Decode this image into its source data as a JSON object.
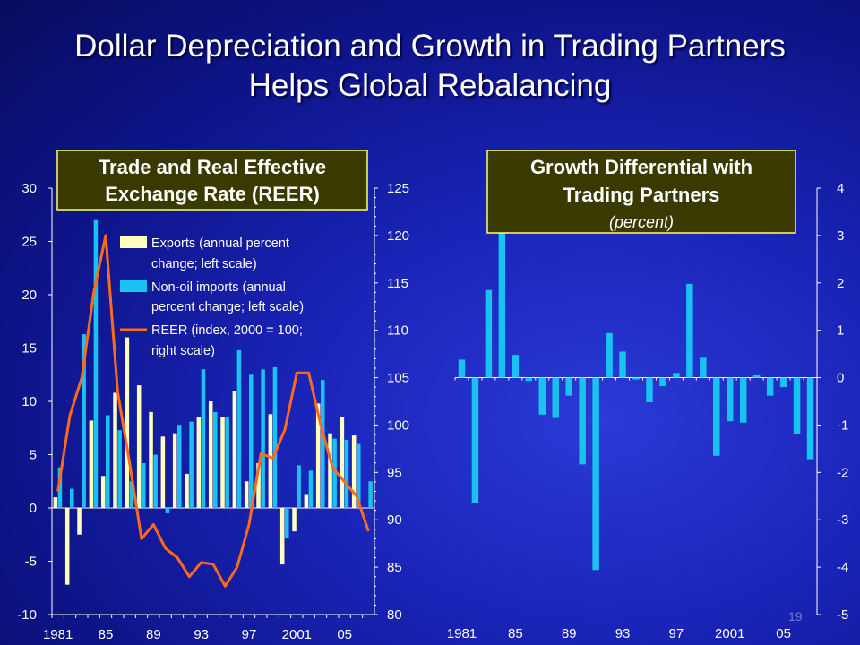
{
  "slide": {
    "title_line1": "Dollar Depreciation and Growth in Trading Partners",
    "title_line2": "Helps Global Rebalancing",
    "page_number": "19"
  },
  "colors": {
    "exports": "#ffffc0",
    "imports": "#19c2f0",
    "reer": "#ff6a1a",
    "title_box_fill": "#3a3a00",
    "title_box_border": "#ffff66",
    "axis": "#ffffff"
  },
  "chart_data": [
    {
      "type": "bar",
      "title_line1": "Trade and Real Effective",
      "title_line2": "Exchange Rate (REER)",
      "x": [
        1981,
        1982,
        1983,
        1984,
        1985,
        1986,
        1987,
        1988,
        1989,
        1990,
        1991,
        1992,
        1993,
        1994,
        1995,
        1996,
        1997,
        1998,
        1999,
        2000,
        2001,
        2002,
        2003,
        2004,
        2005,
        2006,
        2007
      ],
      "x_tick_labels": [
        {
          "x": 1981,
          "label": "1981"
        },
        {
          "x": 1985,
          "label": "85"
        },
        {
          "x": 1989,
          "label": "89"
        },
        {
          "x": 1993,
          "label": "93"
        },
        {
          "x": 1997,
          "label": "97"
        },
        {
          "x": 2001,
          "label": "2001"
        },
        {
          "x": 2005,
          "label": "05"
        }
      ],
      "ylim_left": [
        -10,
        30
      ],
      "ylim_right": [
        80,
        125
      ],
      "y_ticks_left": [
        "30",
        "25",
        "20",
        "15",
        "10",
        "5",
        "0",
        "-5",
        "-10"
      ],
      "y_ticks_right": [
        "125",
        "120",
        "115",
        "110",
        "105",
        "100",
        "95",
        "90",
        "85",
        "80"
      ],
      "series": [
        {
          "name_line1": "Exports (annual percent",
          "name_line2": "change; left scale)",
          "kind": "bar",
          "scale": "left",
          "values": [
            1.0,
            -7.2,
            -2.5,
            8.2,
            3.0,
            10.8,
            16.0,
            11.5,
            9.0,
            6.7,
            7.0,
            3.2,
            8.5,
            10.0,
            8.5,
            11.0,
            2.5,
            4.2,
            8.8,
            -5.3,
            -2.2,
            1.3,
            9.8,
            7.0,
            8.5,
            6.8,
            0
          ]
        },
        {
          "name_line1": "Non-oil imports (annual",
          "name_line2": "percent change; left scale)",
          "kind": "bar",
          "scale": "left",
          "values": [
            3.8,
            1.8,
            16.3,
            27.0,
            8.7,
            7.3,
            2.5,
            4.2,
            5.0,
            -0.5,
            7.8,
            8.1,
            13.0,
            9.0,
            8.5,
            14.8,
            12.5,
            13.0,
            13.2,
            -2.8,
            4.0,
            3.5,
            12.0,
            6.5,
            6.4,
            6.0,
            2.5
          ]
        },
        {
          "name_line1": "REER (index, 2000 = 100;",
          "name_line2": "right scale)",
          "kind": "line",
          "scale": "right",
          "values": [
            93.0,
            101.0,
            105.0,
            114.0,
            120.0,
            103.5,
            96.0,
            88.0,
            89.5,
            87.0,
            86.0,
            84.0,
            85.5,
            85.3,
            83.0,
            85.0,
            89.5,
            97.0,
            96.5,
            99.5,
            105.5,
            105.5,
            100.0,
            95.5,
            94.0,
            92.5,
            88.8
          ]
        }
      ]
    },
    {
      "type": "bar",
      "title_line1": "Growth Differential with",
      "title_line2": "Trading Partners",
      "subtitle": "(percent)",
      "x": [
        1981,
        1982,
        1983,
        1984,
        1985,
        1986,
        1987,
        1988,
        1989,
        1990,
        1991,
        1992,
        1993,
        1994,
        1995,
        1996,
        1997,
        1998,
        1999,
        2000,
        2001,
        2002,
        2003,
        2004,
        2005,
        2006,
        2007
      ],
      "x_tick_labels": [
        {
          "x": 1981,
          "label": "1981"
        },
        {
          "x": 1985,
          "label": "85"
        },
        {
          "x": 1989,
          "label": "89"
        },
        {
          "x": 1993,
          "label": "93"
        },
        {
          "x": 1997,
          "label": "97"
        },
        {
          "x": 2001,
          "label": "2001"
        },
        {
          "x": 2005,
          "label": "05"
        }
      ],
      "ylim": [
        -5,
        4
      ],
      "y_ticks": [
        "4",
        "3",
        "2",
        "1",
        "0",
        "-1",
        "-2",
        "-3",
        "-4",
        "-5"
      ],
      "series": [
        {
          "kind": "bar",
          "values": [
            0.38,
            -2.65,
            1.85,
            3.1,
            0.48,
            -0.07,
            -0.78,
            -0.85,
            -0.38,
            -1.83,
            -4.06,
            0.94,
            0.55,
            -0.04,
            -0.52,
            -0.18,
            0.1,
            1.98,
            0.42,
            -1.65,
            -0.92,
            -0.95,
            0.05,
            -0.38,
            -0.2,
            -1.18,
            -1.72
          ]
        }
      ]
    }
  ]
}
